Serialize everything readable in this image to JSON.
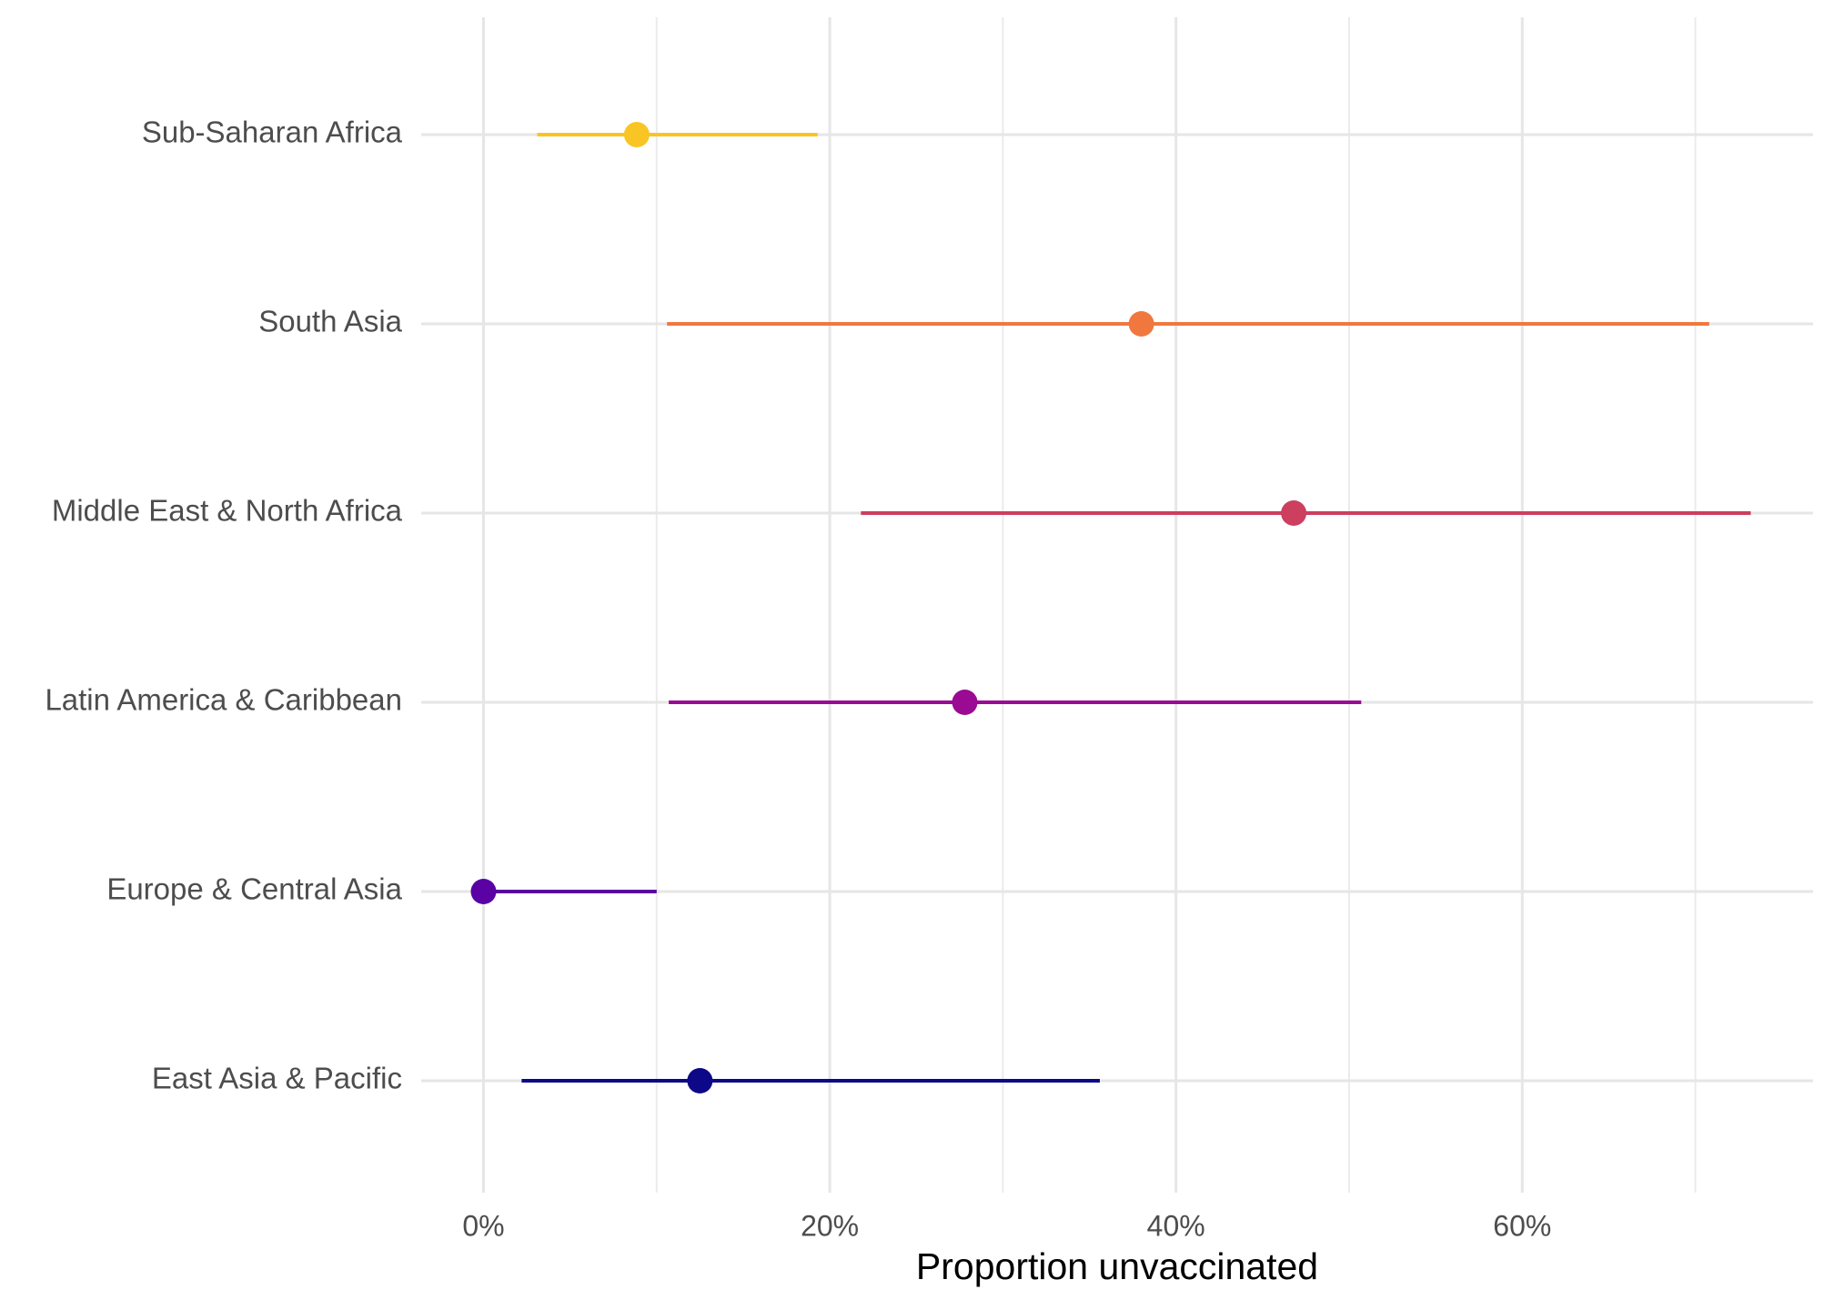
{
  "chart_data": {
    "type": "pointrange",
    "xlabel": "Proportion unvaccinated",
    "categories": [
      "East Asia & Pacific",
      "Europe & Central Asia",
      "Latin America & Caribbean",
      "Middle East & North Africa",
      "South Asia",
      "Sub-Saharan Africa"
    ],
    "values": [
      12.5,
      0,
      27.8,
      46.8,
      38.0,
      8.85
    ],
    "lower": [
      2.2,
      0,
      10.7,
      21.8,
      10.6,
      3.1
    ],
    "upper": [
      35.6,
      10.0,
      50.7,
      73.2,
      70.8,
      19.3
    ],
    "colors": [
      "#0d0887",
      "#5a02a3",
      "#9a0a93",
      "#cc3f5e",
      "#f0783f",
      "#f9c524"
    ],
    "xlim": [
      -3.6,
      76.8
    ],
    "xticks": [
      {
        "value": 0,
        "label": "0%"
      },
      {
        "value": 20,
        "label": "20%"
      },
      {
        "value": 40,
        "label": "40%"
      },
      {
        "value": 60,
        "label": "60%"
      }
    ],
    "xminor": [
      10,
      30,
      50,
      70
    ],
    "grid": true
  }
}
